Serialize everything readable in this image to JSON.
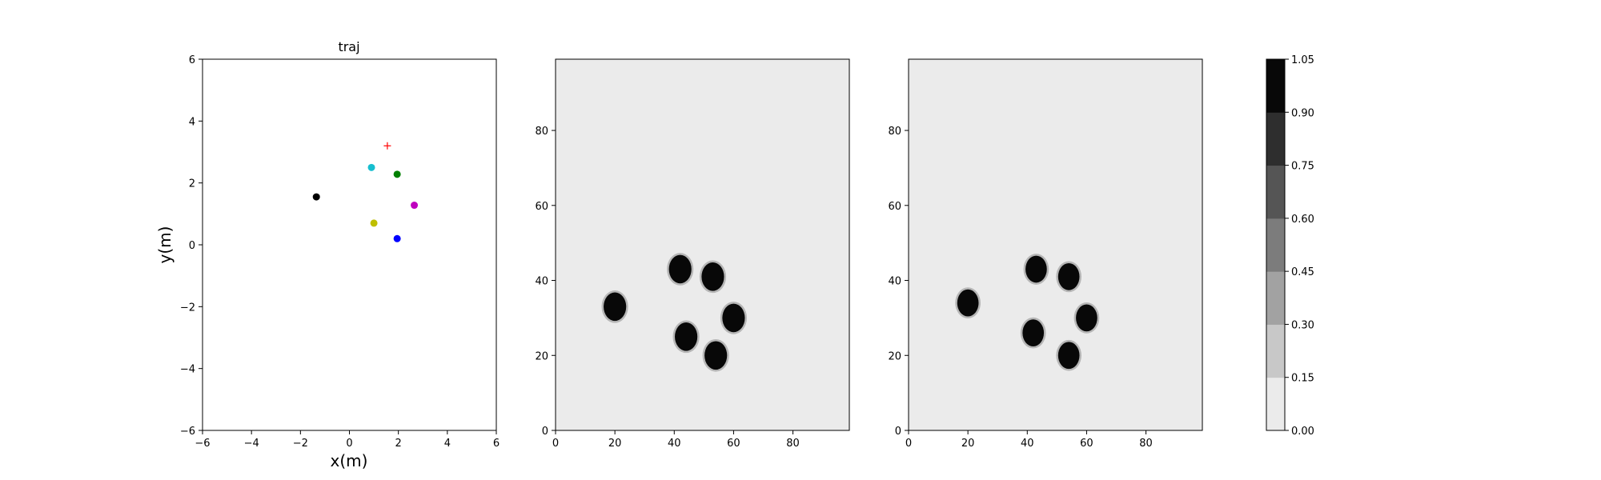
{
  "chart_data": [
    {
      "type": "scatter",
      "title": "traj",
      "xlabel": "x(m)",
      "ylabel": "y(m)",
      "xlim": [
        -6,
        6
      ],
      "ylim": [
        -6,
        6
      ],
      "xticks": [
        "−6",
        "−4",
        "−2",
        "0",
        "2",
        "4",
        "6"
      ],
      "yticks": [
        "−6",
        "−4",
        "−2",
        "0",
        "2",
        "4",
        "6"
      ],
      "grid": false,
      "points": [
        {
          "x": -1.35,
          "y": 1.55,
          "color": "#000000",
          "marker": "dot"
        },
        {
          "x": 0.9,
          "y": 2.5,
          "color": "#17becf",
          "marker": "dot"
        },
        {
          "x": 1.95,
          "y": 2.28,
          "color": "#008000",
          "marker": "dot"
        },
        {
          "x": 2.65,
          "y": 1.28,
          "color": "#bf00bf",
          "marker": "dot"
        },
        {
          "x": 1.0,
          "y": 0.7,
          "color": "#bfbf00",
          "marker": "dot"
        },
        {
          "x": 1.95,
          "y": 0.2,
          "color": "#0000ff",
          "marker": "dot"
        },
        {
          "x": 1.55,
          "y": 3.2,
          "color": "#ff0000",
          "marker": "plus"
        }
      ]
    },
    {
      "type": "heatmap",
      "xlim": [
        0,
        99
      ],
      "ylim": [
        0,
        99
      ],
      "xticks": [
        "0",
        "20",
        "40",
        "60",
        "80"
      ],
      "yticks": [
        "0",
        "20",
        "40",
        "60",
        "80"
      ],
      "background_level": 0.0,
      "blobs": [
        {
          "x": 20,
          "y": 33,
          "r": 3.8,
          "level": 1.0
        },
        {
          "x": 42,
          "y": 43,
          "r": 3.8,
          "level": 1.0
        },
        {
          "x": 53,
          "y": 41,
          "r": 3.8,
          "level": 1.0
        },
        {
          "x": 60,
          "y": 30,
          "r": 3.8,
          "level": 1.0
        },
        {
          "x": 44,
          "y": 25,
          "r": 3.8,
          "level": 1.0
        },
        {
          "x": 54,
          "y": 20,
          "r": 3.8,
          "level": 1.0
        }
      ]
    },
    {
      "type": "heatmap",
      "xlim": [
        0,
        99
      ],
      "ylim": [
        0,
        99
      ],
      "xticks": [
        "0",
        "20",
        "40",
        "60",
        "80"
      ],
      "yticks": [
        "0",
        "20",
        "40",
        "60",
        "80"
      ],
      "background_level": 0.0,
      "blobs": [
        {
          "x": 20,
          "y": 34,
          "r": 3.6,
          "level": 1.0
        },
        {
          "x": 43,
          "y": 43,
          "r": 3.6,
          "level": 1.0
        },
        {
          "x": 54,
          "y": 41,
          "r": 3.6,
          "level": 1.0
        },
        {
          "x": 60,
          "y": 30,
          "r": 3.6,
          "level": 1.0
        },
        {
          "x": 42,
          "y": 26,
          "r": 3.6,
          "level": 1.0
        },
        {
          "x": 54,
          "y": 20,
          "r": 3.6,
          "level": 1.0
        }
      ]
    }
  ],
  "colorbar": {
    "ticks": [
      "0.00",
      "0.15",
      "0.30",
      "0.45",
      "0.60",
      "0.75",
      "0.90",
      "1.05"
    ],
    "colors": [
      "#ebebeb",
      "#c8c8c8",
      "#a2a2a2",
      "#7c7c7c",
      "#555555",
      "#2e2e2e",
      "#080808"
    ]
  }
}
